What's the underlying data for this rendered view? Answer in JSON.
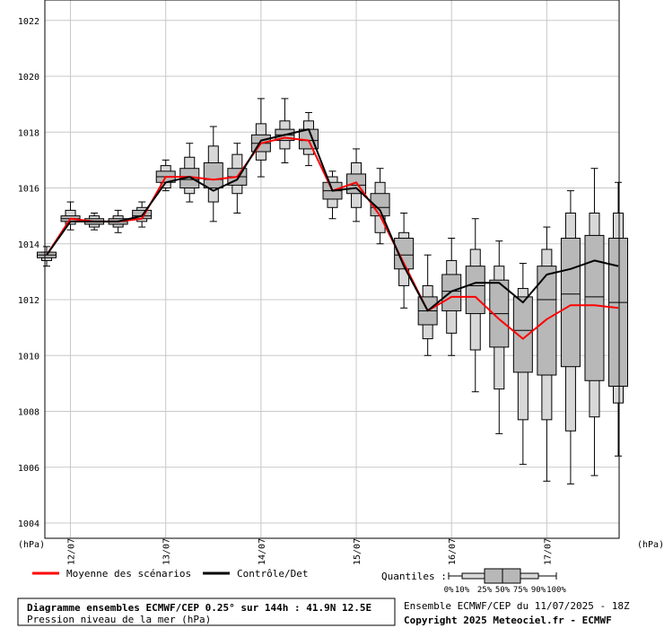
{
  "chart_data": {
    "type": "boxplot-ensemble",
    "title": "Diagramme ensembles ECMWF/CEP 0.25° sur 144h : 41.9N 12.5E",
    "subtitle": "Pression niveau de la mer (hPa)",
    "ylabel_left": "(hPa)",
    "ylabel_right": "(hPa)",
    "ylim": [
      1003.5,
      1022.5
    ],
    "yticks": [
      1004,
      1006,
      1008,
      1010,
      1012,
      1014,
      1016,
      1018,
      1020,
      1022
    ],
    "grid": true,
    "x_range_hours": [
      0,
      144
    ],
    "day_ticks": [
      {
        "label": "12/07",
        "hour": 6
      },
      {
        "label": "13/07",
        "hour": 30
      },
      {
        "label": "14/07",
        "hour": 54
      },
      {
        "label": "15/07",
        "hour": 78
      },
      {
        "label": "16/07",
        "hour": 102
      },
      {
        "label": "17/07",
        "hour": 126
      }
    ],
    "boxes": [
      {
        "hour": 0,
        "p0": 1013.2,
        "p10": 1013.4,
        "p25": 1013.5,
        "p50": 1013.6,
        "p75": 1013.7,
        "p90": 1013.7,
        "p100": 1013.9
      },
      {
        "hour": 6,
        "p0": 1014.5,
        "p10": 1014.7,
        "p25": 1014.8,
        "p50": 1014.9,
        "p75": 1015.0,
        "p90": 1015.2,
        "p100": 1015.5
      },
      {
        "hour": 12,
        "p0": 1014.5,
        "p10": 1014.6,
        "p25": 1014.7,
        "p50": 1014.8,
        "p75": 1014.9,
        "p90": 1015.0,
        "p100": 1015.1
      },
      {
        "hour": 18,
        "p0": 1014.4,
        "p10": 1014.6,
        "p25": 1014.7,
        "p50": 1014.8,
        "p75": 1014.9,
        "p90": 1015.0,
        "p100": 1015.2
      },
      {
        "hour": 24,
        "p0": 1014.6,
        "p10": 1014.8,
        "p25": 1014.9,
        "p50": 1015.0,
        "p75": 1015.2,
        "p90": 1015.3,
        "p100": 1015.5
      },
      {
        "hour": 30,
        "p0": 1015.9,
        "p10": 1016.0,
        "p25": 1016.2,
        "p50": 1016.4,
        "p75": 1016.6,
        "p90": 1016.8,
        "p100": 1017.0
      },
      {
        "hour": 36,
        "p0": 1015.5,
        "p10": 1015.8,
        "p25": 1016.0,
        "p50": 1016.3,
        "p75": 1016.7,
        "p90": 1017.1,
        "p100": 1017.6
      },
      {
        "hour": 42,
        "p0": 1014.8,
        "p10": 1015.5,
        "p25": 1016.0,
        "p50": 1016.3,
        "p75": 1016.9,
        "p90": 1017.5,
        "p100": 1018.2
      },
      {
        "hour": 48,
        "p0": 1015.1,
        "p10": 1015.8,
        "p25": 1016.1,
        "p50": 1016.4,
        "p75": 1016.7,
        "p90": 1017.2,
        "p100": 1017.6
      },
      {
        "hour": 54,
        "p0": 1016.4,
        "p10": 1017.0,
        "p25": 1017.3,
        "p50": 1017.6,
        "p75": 1017.9,
        "p90": 1018.3,
        "p100": 1019.2
      },
      {
        "hour": 60,
        "p0": 1016.9,
        "p10": 1017.4,
        "p25": 1017.7,
        "p50": 1017.9,
        "p75": 1018.1,
        "p90": 1018.4,
        "p100": 1019.2
      },
      {
        "hour": 66,
        "p0": 1016.8,
        "p10": 1017.2,
        "p25": 1017.4,
        "p50": 1017.7,
        "p75": 1018.1,
        "p90": 1018.4,
        "p100": 1018.7
      },
      {
        "hour": 72,
        "p0": 1014.9,
        "p10": 1015.3,
        "p25": 1015.6,
        "p50": 1015.9,
        "p75": 1016.2,
        "p90": 1016.4,
        "p100": 1016.6
      },
      {
        "hour": 78,
        "p0": 1014.8,
        "p10": 1015.3,
        "p25": 1015.8,
        "p50": 1016.1,
        "p75": 1016.5,
        "p90": 1016.9,
        "p100": 1017.4
      },
      {
        "hour": 84,
        "p0": 1014.0,
        "p10": 1014.4,
        "p25": 1015.0,
        "p50": 1015.3,
        "p75": 1015.8,
        "p90": 1016.2,
        "p100": 1016.7
      },
      {
        "hour": 90,
        "p0": 1011.7,
        "p10": 1012.5,
        "p25": 1013.1,
        "p50": 1013.6,
        "p75": 1014.2,
        "p90": 1014.4,
        "p100": 1015.1
      },
      {
        "hour": 96,
        "p0": 1010.0,
        "p10": 1010.6,
        "p25": 1011.1,
        "p50": 1011.6,
        "p75": 1012.1,
        "p90": 1012.5,
        "p100": 1013.6
      },
      {
        "hour": 102,
        "p0": 1010.0,
        "p10": 1010.8,
        "p25": 1011.6,
        "p50": 1012.3,
        "p75": 1012.9,
        "p90": 1013.4,
        "p100": 1014.2
      },
      {
        "hour": 108,
        "p0": 1008.7,
        "p10": 1010.2,
        "p25": 1011.5,
        "p50": 1012.5,
        "p75": 1013.2,
        "p90": 1013.8,
        "p100": 1014.9
      },
      {
        "hour": 114,
        "p0": 1007.2,
        "p10": 1008.8,
        "p25": 1010.3,
        "p50": 1011.5,
        "p75": 1012.7,
        "p90": 1013.2,
        "p100": 1014.1
      },
      {
        "hour": 120,
        "p0": 1006.1,
        "p10": 1007.7,
        "p25": 1009.4,
        "p50": 1010.9,
        "p75": 1012.1,
        "p90": 1012.4,
        "p100": 1013.3
      },
      {
        "hour": 126,
        "p0": 1005.5,
        "p10": 1007.7,
        "p25": 1009.3,
        "p50": 1012.0,
        "p75": 1013.2,
        "p90": 1013.8,
        "p100": 1014.6
      },
      {
        "hour": 132,
        "p0": 1005.4,
        "p10": 1007.3,
        "p25": 1009.6,
        "p50": 1012.2,
        "p75": 1014.2,
        "p90": 1015.1,
        "p100": 1015.9
      },
      {
        "hour": 138,
        "p0": 1005.7,
        "p10": 1007.8,
        "p25": 1009.1,
        "p50": 1012.1,
        "p75": 1014.3,
        "p90": 1015.1,
        "p100": 1016.7
      },
      {
        "hour": 144,
        "p0": 1006.4,
        "p10": 1008.3,
        "p25": 1008.9,
        "p50": 1011.9,
        "p75": 1014.2,
        "p90": 1015.1,
        "p100": 1016.2
      }
    ],
    "series": [
      {
        "name": "Moyenne des scénarios",
        "color": "#ff0000",
        "values": [
          1013.6,
          1014.9,
          1014.8,
          1014.8,
          1014.9,
          1016.4,
          1016.4,
          1016.3,
          1016.4,
          1017.6,
          1017.8,
          1017.7,
          1015.9,
          1016.2,
          1015.0,
          1013.3,
          1011.6,
          1012.1,
          1012.1,
          1011.3,
          1010.6,
          1011.3,
          1011.8,
          1011.8,
          1011.7
        ]
      },
      {
        "name": "Contrôle/Det",
        "color": "#000000",
        "values": [
          1013.6,
          1014.8,
          1014.8,
          1014.8,
          1015.0,
          1016.2,
          1016.4,
          1015.9,
          1016.3,
          1017.7,
          1017.9,
          1018.1,
          1015.9,
          1016.0,
          1015.2,
          1013.2,
          1011.6,
          1012.3,
          1012.6,
          1012.6,
          1011.9,
          1012.9,
          1013.1,
          1013.4,
          1013.2
        ]
      }
    ]
  },
  "legend": {
    "quantiles_label": "Quantiles :",
    "quantile_ticks": [
      "0%",
      "10%",
      "25%",
      "50%",
      "75%",
      "90%",
      "100%"
    ]
  },
  "footer": {
    "run_info": "Ensemble ECMWF/CEP du 11/07/2025 - 18Z",
    "copyright": "Copyright 2025 Meteociel.fr - ECMWF"
  }
}
